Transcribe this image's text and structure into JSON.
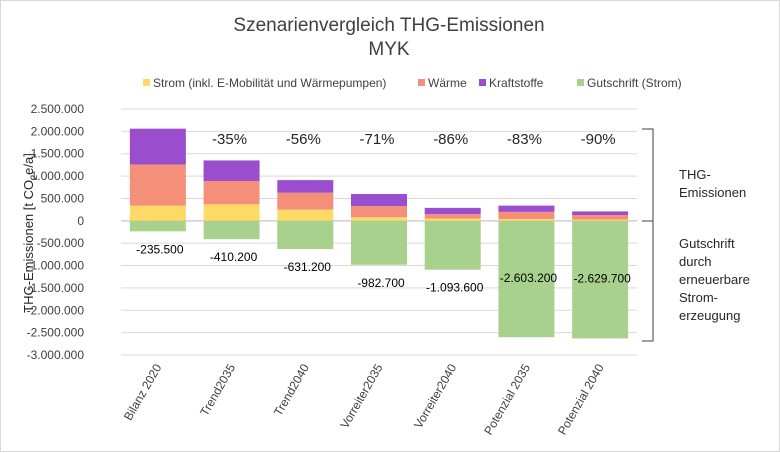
{
  "chart_data": {
    "type": "bar",
    "stacked": true,
    "title": "Szenarienvergleich THG-Emissionen",
    "subtitle": "MYK",
    "ylabel_prefix": "THG-Emissionen [t CO",
    "ylabel_sub": "2",
    "ylabel_suffix": "e/a]",
    "ylim": [
      -3000000,
      2500000
    ],
    "yticks": [
      2500000,
      2000000,
      1500000,
      1000000,
      500000,
      0,
      -500000,
      -1000000,
      -1500000,
      -2000000,
      -2500000,
      -3000000
    ],
    "ytick_labels": [
      "2.500.000",
      "2.000.000",
      "1.500.000",
      "1.000.000",
      "500.000",
      "0",
      "-500.000",
      "-1.000.000",
      "-1.500.000",
      "-2.000.000",
      "-2.500.000",
      "-3.000.000"
    ],
    "grid": true,
    "legend_position": "top",
    "categories": [
      "Bilanz 2020",
      "Trend2035",
      "Trend2040",
      "Vorreiter2035",
      "Vorreiter2040",
      "Potenzial 2035",
      "Potenzial 2040"
    ],
    "series": [
      {
        "name": "Strom (inkl. E-Mobilität und Wärmepumpen)",
        "color": "#FFD966",
        "values": [
          340000,
          370000,
          250000,
          80000,
          50000,
          40000,
          30000
        ]
      },
      {
        "name": "Wärme",
        "color": "#F4907A",
        "values": [
          920000,
          520000,
          380000,
          250000,
          100000,
          160000,
          100000
        ]
      },
      {
        "name": "Kraftstoffe",
        "color": "#9A4DCC",
        "values": [
          800000,
          460000,
          280000,
          270000,
          140000,
          140000,
          80000
        ]
      },
      {
        "name": "Gutschrift (Strom)",
        "color": "#A9D18E",
        "values": [
          -235500,
          -410200,
          -631200,
          -982700,
          -1093600,
          -2603200,
          -2629700
        ]
      }
    ],
    "reduction_labels": [
      "",
      "-35%",
      "-56%",
      "-71%",
      "-86%",
      "-83%",
      "-90%"
    ],
    "gutschrift_labels": [
      "-235.500",
      "-410.200",
      "-631.200",
      "-982.700",
      "-1.093.600",
      "-2.603.200",
      "-2.629.700"
    ],
    "annotations": {
      "emissions": [
        "THG-",
        "Emissionen"
      ],
      "credit": [
        "Gutschrift",
        "durch",
        "erneuerbare",
        "Strom-",
        "erzeugung"
      ]
    }
  }
}
